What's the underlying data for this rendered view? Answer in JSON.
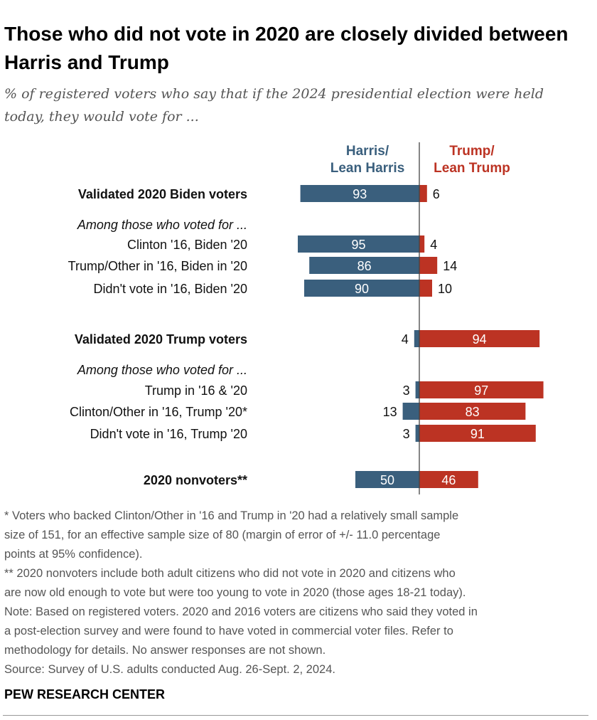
{
  "title": "Those who did not vote in 2020 are closely divided between Harris and Trump",
  "subtitle": "% of registered voters who say that if the 2024 presidential election were held today, they would vote for ...",
  "colors": {
    "harris": "#3a5f7d",
    "trump": "#bc3323",
    "axis": "#444444"
  },
  "chart_data": {
    "type": "bar",
    "orientation": "diverging-horizontal",
    "series": [
      {
        "name": "Harris/ Lean Harris",
        "color": "#3a5f7d"
      },
      {
        "name": "Trump/ Lean Trump",
        "color": "#bc3323"
      }
    ],
    "legend_lines": {
      "harris": [
        "Harris/",
        "Lean Harris"
      ],
      "trump": [
        "Trump/",
        "Lean Trump"
      ]
    },
    "rows": [
      {
        "label": "Validated 2020 Biden voters",
        "bold": true,
        "harris": 93,
        "trump": 6
      },
      {
        "label": "Among those who voted for ...",
        "italic": true
      },
      {
        "label": "Clinton '16, Biden '20",
        "harris": 95,
        "trump": 4
      },
      {
        "label": "Trump/Other in '16, Biden in '20",
        "harris": 86,
        "trump": 14
      },
      {
        "label": "Didn't vote in '16, Biden '20",
        "harris": 90,
        "trump": 10
      },
      {
        "label": "Validated 2020 Trump voters",
        "bold": true,
        "harris": 4,
        "trump": 94
      },
      {
        "label": "Among those who voted for ...",
        "italic": true
      },
      {
        "label": "Trump in '16 & '20",
        "harris": 3,
        "trump": 97
      },
      {
        "label": "Clinton/Other in '16, Trump '20*",
        "harris": 13,
        "trump": 83
      },
      {
        "label": "Didn't vote in '16, Trump '20",
        "harris": 3,
        "trump": 91
      },
      {
        "label": "2020 nonvoters**",
        "bold": true,
        "harris": 50,
        "trump": 46
      }
    ]
  },
  "notes": [
    "* Voters who backed Clinton/Other in '16 and Trump in '20 had a relatively small sample",
    "size of 151, for an effective sample size of 80 (margin of error of +/- 11.0 percentage",
    "points at 95% confidence).",
    "** 2020 nonvoters include both adult citizens who did not vote in 2020 and citizens who",
    "are now old enough to vote but were too young to vote in 2020 (those ages 18-21 today).",
    "Note: Based on registered voters. 2020 and 2016 voters are citizens who said they voted in",
    "a post-election survey and were found to have voted in commercial voter files. Refer to",
    "methodology for details. No answer responses are not shown.",
    "Source: Survey of U.S. adults conducted Aug. 26-Sept. 2, 2024."
  ],
  "brand": "PEW RESEARCH CENTER"
}
